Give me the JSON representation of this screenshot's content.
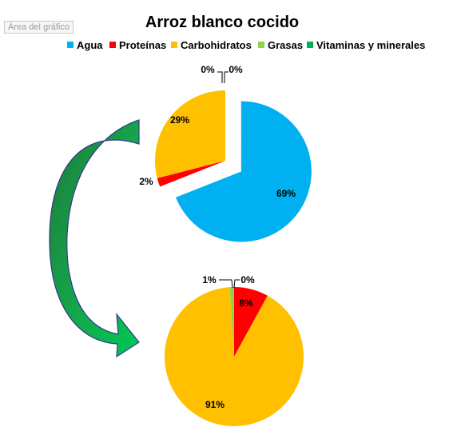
{
  "tooltip": "Área del gráfico",
  "chart_data": {
    "type": "pie",
    "title": "Arroz blanco cocido",
    "legend_position": "top",
    "categories": [
      "Agua",
      "Proteínas",
      "Carbohidratos",
      "Grasas",
      "Vitaminas y minerales"
    ],
    "colors": [
      "#00B0F0",
      "#FF0000",
      "#FFC000",
      "#92D050",
      "#00B050"
    ],
    "series": [
      {
        "values": [
          69,
          2,
          29,
          0,
          0
        ],
        "labels": [
          "69%",
          "2%",
          "29%",
          "0%",
          "0%"
        ]
      },
      {
        "values": [
          0,
          8,
          91,
          1,
          0
        ],
        "labels": [
          "",
          "8%",
          "91%",
          "1%",
          "0%"
        ]
      }
    ]
  }
}
